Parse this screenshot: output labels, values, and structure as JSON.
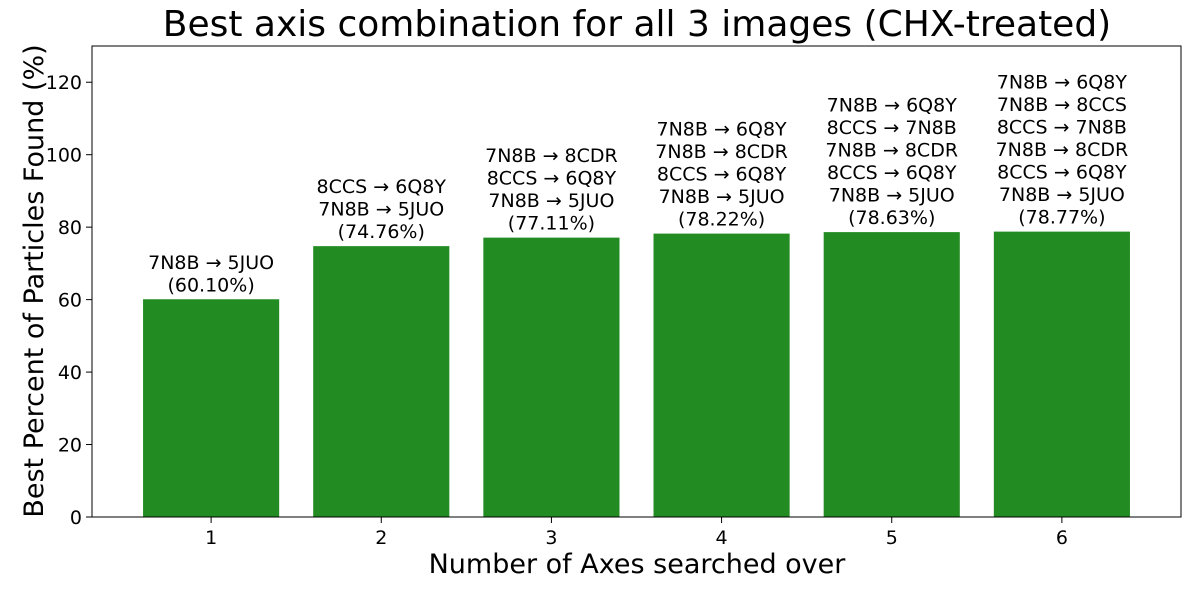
{
  "chart_data": {
    "type": "bar",
    "title": "Best axis combination for all 3 images (CHX-treated)",
    "xlabel": "Number of Axes searched over",
    "ylabel": "Best Percent of Particles Found (%)",
    "categories": [
      "1",
      "2",
      "3",
      "4",
      "5",
      "6"
    ],
    "values": [
      60.1,
      74.76,
      77.11,
      78.22,
      78.63,
      78.77
    ],
    "ylim": [
      0,
      130
    ],
    "yticks": [
      "0",
      "20",
      "40",
      "60",
      "80",
      "100",
      "120"
    ],
    "bar_color": "#228b22",
    "grid": false,
    "legend": "none",
    "annotations": [
      [
        "7N8B → 5JUO",
        "(60.10%)"
      ],
      [
        "8CCS → 6Q8Y",
        "7N8B → 5JUO",
        "(74.76%)"
      ],
      [
        "7N8B → 8CDR",
        "8CCS → 6Q8Y",
        "7N8B → 5JUO",
        "(77.11%)"
      ],
      [
        "7N8B → 6Q8Y",
        "7N8B → 8CDR",
        "8CCS → 6Q8Y",
        "7N8B → 5JUO",
        "(78.22%)"
      ],
      [
        "7N8B → 6Q8Y",
        "8CCS → 7N8B",
        "7N8B → 8CDR",
        "8CCS → 6Q8Y",
        "7N8B → 5JUO",
        "(78.63%)"
      ],
      [
        "7N8B → 6Q8Y",
        "7N8B → 8CCS",
        "8CCS → 7N8B",
        "7N8B → 8CDR",
        "8CCS → 6Q8Y",
        "7N8B → 5JUO",
        "(78.77%)"
      ]
    ]
  }
}
